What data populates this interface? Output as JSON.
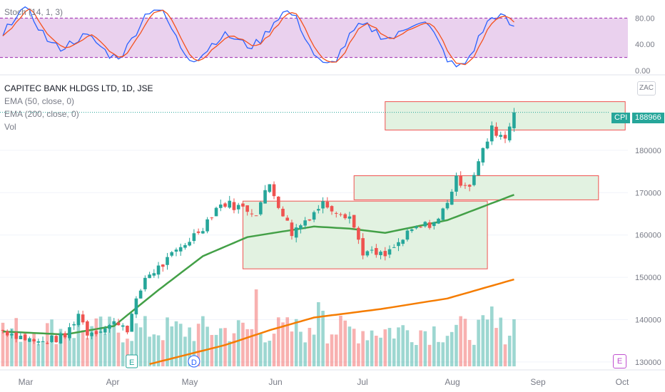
{
  "indicators": {
    "stoch_label": "Stoch (14, 1, 3)",
    "symbol_label": "CAPITEC BANK HLDGS LTD, 1D, JSE",
    "ema50_label": "EMA (50, close, 0)",
    "ema200_label": "EMA (200, close, 0)",
    "vol_label": "Vol"
  },
  "price_tag": {
    "ticker": "CPI",
    "value": "188966"
  },
  "zac_badge": "ZAC",
  "event_badges": {
    "earnings": "E",
    "dividend": "D",
    "future_earnings": "E"
  },
  "colors": {
    "up": "#26a69a",
    "down": "#ef5350",
    "ema50": "#43a047",
    "ema200": "#f57c00",
    "stoch_k": "#2962ff",
    "stoch_d": "#f4511e",
    "stoch_band": "#e1bee7",
    "box_fill": "#e2f2e1",
    "box_stroke": "#ef5350"
  },
  "chart_data": {
    "type": "candlestick",
    "symbol": "CAPITEC BANK HLDGS LTD",
    "interval": "1D",
    "exchange": "JSE",
    "currency": "ZAC",
    "x_ticks": [
      "Mar",
      "Apr",
      "May",
      "Jun",
      "Jul",
      "Aug",
      "Sep",
      "Oct"
    ],
    "y_ticks": [
      "180000",
      "170000",
      "160000",
      "150000",
      "140000",
      "130000"
    ],
    "y_range": [
      128800,
      198000
    ],
    "stoch_ticks": [
      "80.00",
      "40.00",
      "0.00"
    ],
    "stoch_range": [
      0,
      100
    ],
    "last_price": 188966,
    "close_start": 137500,
    "close_anchors": [
      [
        0,
        137500
      ],
      [
        8,
        134500
      ],
      [
        14,
        136000
      ],
      [
        17,
        141500
      ],
      [
        19,
        137000
      ],
      [
        23,
        138000
      ],
      [
        26,
        139500
      ],
      [
        28,
        138000
      ],
      [
        32,
        150000
      ],
      [
        36,
        153000
      ],
      [
        45,
        162000
      ],
      [
        48,
        166500
      ],
      [
        50,
        167500
      ],
      [
        57,
        165500
      ],
      [
        60,
        172000
      ],
      [
        63,
        165000
      ],
      [
        65,
        160500
      ],
      [
        72,
        167500
      ],
      [
        78,
        164500
      ],
      [
        81,
        156000
      ],
      [
        86,
        155000
      ],
      [
        92,
        161000
      ],
      [
        98,
        163500
      ],
      [
        102,
        173000
      ],
      [
        105,
        172000
      ],
      [
        110,
        185000
      ],
      [
        113,
        183000
      ],
      [
        115,
        188966
      ]
    ],
    "ema50": [
      [
        0,
        137200
      ],
      [
        14,
        136500
      ],
      [
        25,
        138500
      ],
      [
        35,
        147000
      ],
      [
        45,
        155000
      ],
      [
        55,
        159500
      ],
      [
        70,
        162000
      ],
      [
        78,
        161500
      ],
      [
        86,
        160500
      ],
      [
        100,
        163500
      ],
      [
        115,
        169500
      ]
    ],
    "ema200": [
      [
        33,
        129500
      ],
      [
        50,
        134000
      ],
      [
        60,
        137500
      ],
      [
        70,
        140500
      ],
      [
        85,
        142500
      ],
      [
        100,
        145000
      ],
      [
        115,
        149500
      ]
    ],
    "volume_spikes": {
      "57": 0.9,
      "69": 0.45,
      "71": 0.75,
      "72": 0.65,
      "110": 0.7,
      "115": 0.55
    },
    "boxes": [
      {
        "from": 54,
        "to": 109,
        "top": 168000,
        "bottom": 152000
      },
      {
        "from": 79,
        "to": 134,
        "top": 174000,
        "bottom": 168300
      },
      {
        "from": 86,
        "to": 140,
        "top": 191500,
        "bottom": 184800
      }
    ],
    "event_markers": [
      {
        "label": "E",
        "index": 29
      },
      {
        "label": "D",
        "index": 43
      },
      {
        "label": "E",
        "index": 136
      }
    ]
  }
}
